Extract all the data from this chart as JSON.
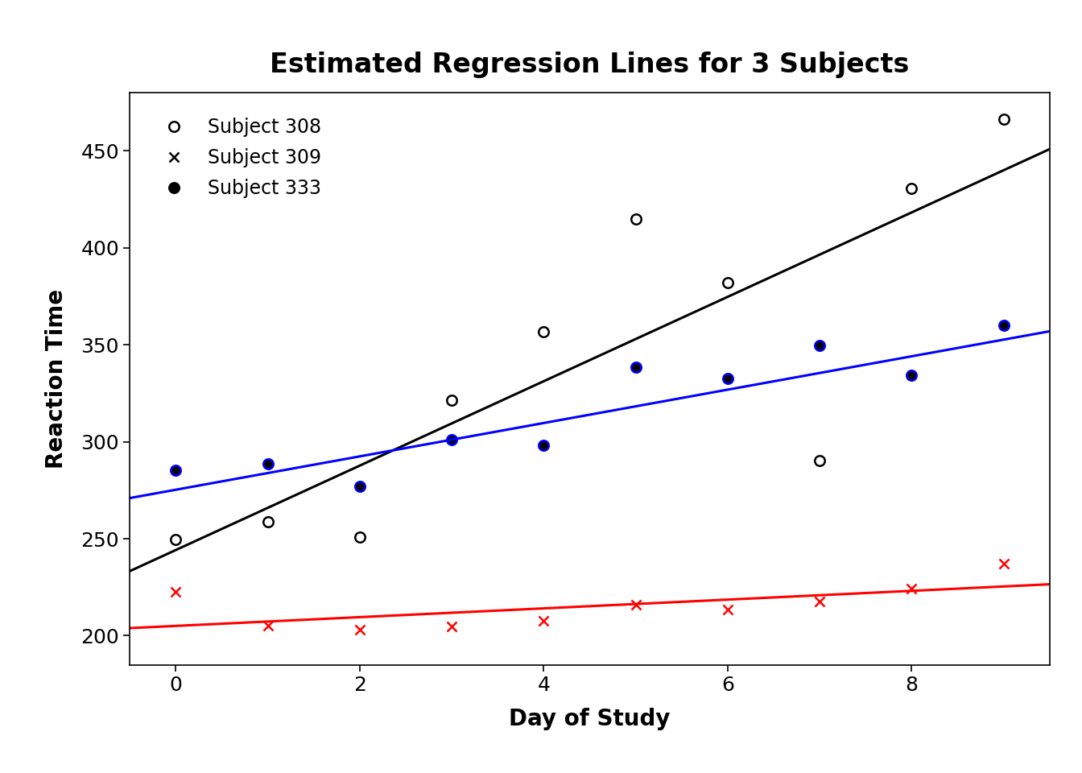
{
  "title": "Estimated Regression Lines for 3 Subjects",
  "xlabel": "Day of Study",
  "ylabel": "Reaction Time",
  "subject_308": {
    "days": [
      0,
      1,
      2,
      3,
      4,
      5,
      6,
      7,
      8,
      9
    ],
    "reaction": [
      249.56,
      258.7,
      250.8,
      321.44,
      356.85,
      414.69,
      382.2,
      290.15,
      430.59,
      466.35
    ],
    "color": "black",
    "marker": "o",
    "markerfacecolor": "white",
    "line_intercept": 244.19,
    "line_slope": 21.76,
    "label": "Subject 308"
  },
  "subject_309": {
    "days": [
      0,
      1,
      2,
      3,
      4,
      5,
      6,
      7,
      8,
      9
    ],
    "reaction": [
      222.73,
      205.27,
      202.98,
      204.71,
      207.72,
      215.96,
      213.63,
      217.74,
      224.29,
      237.14
    ],
    "color": "red",
    "marker": "x",
    "markerfacecolor": "red",
    "line_intercept": 205.05,
    "line_slope": 2.26,
    "label": "Subject 309"
  },
  "subject_333": {
    "days": [
      0,
      1,
      2,
      3,
      4,
      5,
      6,
      7,
      8,
      9
    ],
    "reaction": [
      285.34,
      288.64,
      277.01,
      301.22,
      298.32,
      338.47,
      332.46,
      349.8,
      334.48,
      360.2
    ],
    "color": "blue",
    "marker": "o",
    "markerfacecolor": "black",
    "line_intercept": 275.28,
    "line_slope": 8.6,
    "label": "Subject 333"
  },
  "xlim": [
    -0.5,
    9.5
  ],
  "ylim": [
    185,
    480
  ],
  "xticks": [
    0,
    2,
    4,
    6,
    8
  ],
  "yticks": [
    200,
    250,
    300,
    350,
    400,
    450
  ],
  "background_color": "white",
  "title_fontsize": 24,
  "label_fontsize": 20,
  "tick_fontsize": 18,
  "legend_fontsize": 17,
  "marker_size": 9,
  "line_width": 2.2
}
